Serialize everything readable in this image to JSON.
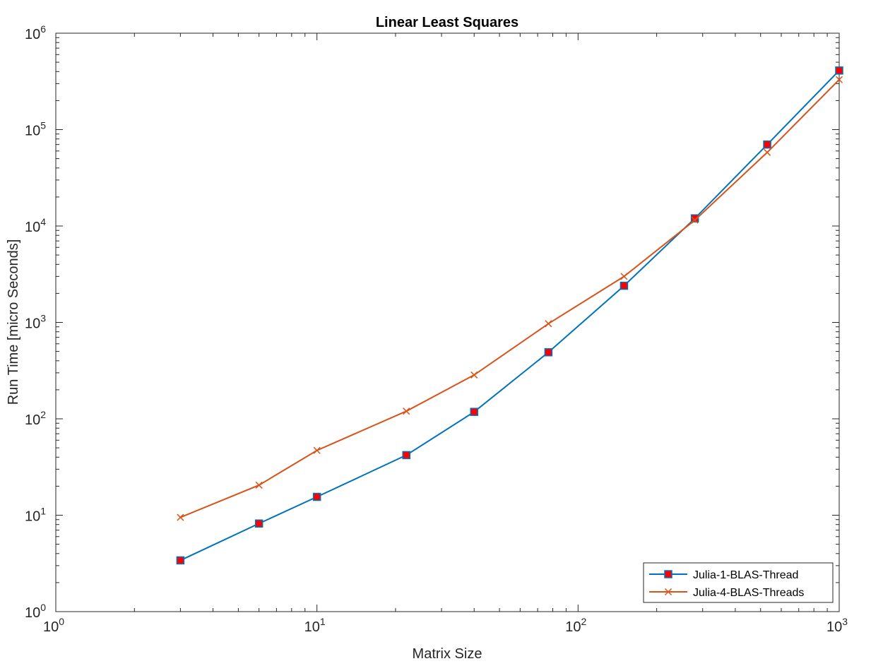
{
  "chart_data": {
    "type": "line",
    "title": "Linear Least Squares",
    "xlabel": "Matrix Size",
    "ylabel": "Run Time  [micro Seconds]",
    "xscale": "log",
    "yscale": "log",
    "xlim": [
      1,
      1000
    ],
    "ylim": [
      1,
      1000000
    ],
    "x_ticks": [
      {
        "base": "10",
        "exp": "0",
        "value": 1
      },
      {
        "base": "10",
        "exp": "1",
        "value": 10
      },
      {
        "base": "10",
        "exp": "2",
        "value": 100
      },
      {
        "base": "10",
        "exp": "3",
        "value": 1000
      }
    ],
    "y_ticks": [
      {
        "base": "10",
        "exp": "0",
        "value": 1
      },
      {
        "base": "10",
        "exp": "1",
        "value": 10
      },
      {
        "base": "10",
        "exp": "2",
        "value": 100
      },
      {
        "base": "10",
        "exp": "3",
        "value": 1000
      },
      {
        "base": "10",
        "exp": "4",
        "value": 10000
      },
      {
        "base": "10",
        "exp": "5",
        "value": 100000
      },
      {
        "base": "10",
        "exp": "6",
        "value": 1000000
      }
    ],
    "grid": false,
    "legend_position": "bottom-right",
    "series": [
      {
        "name": "Julia-1-BLAS-Thread",
        "color": "#0072BD",
        "marker": "square",
        "marker_fill": "#FF0000",
        "x": [
          3,
          6,
          10,
          22,
          40,
          77,
          150,
          280,
          530,
          1000
        ],
        "y": [
          3.4,
          8.2,
          15.5,
          42,
          118,
          490,
          2400,
          12000,
          70000,
          410000
        ]
      },
      {
        "name": "Julia-4-BLAS-Threads",
        "color": "#D95319",
        "marker": "x",
        "x": [
          3,
          6,
          10,
          22,
          40,
          77,
          150,
          280,
          530,
          1000
        ],
        "y": [
          9.5,
          20.5,
          47,
          120,
          285,
          970,
          3000,
          11500,
          58000,
          330000
        ]
      }
    ]
  }
}
